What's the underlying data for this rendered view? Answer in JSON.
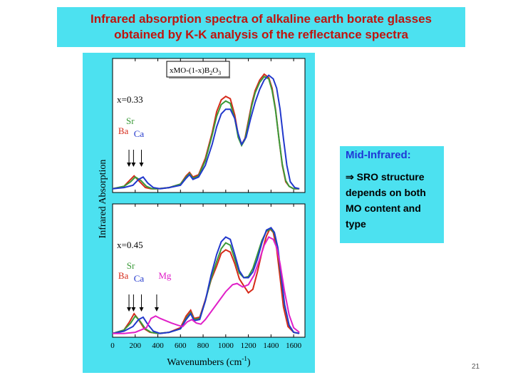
{
  "slide": {
    "title_line1": "Infrared absorption spectra of alkaline earth borate glasses",
    "title_line2": "obtained by K-K analysis of the reflectance spectra",
    "number": "21"
  },
  "info_box": {
    "title": "Mid-Infrared:",
    "lines": [
      "⇒ SRO structure",
      "depends on both",
      "MO content and",
      "type"
    ]
  },
  "colors": {
    "panel_bg": "#4ce1f0",
    "title_text": "#c0140e",
    "info_title": "#1f37d6",
    "Ba": "#d62a1a",
    "Sr": "#3a9a38",
    "Ca": "#2238cc",
    "Mg": "#e020c8"
  },
  "chart_data": {
    "type": "line",
    "ylabel": "Infrared Absorption",
    "xlabel": "Wavenumbers (cm-1)",
    "xlabel_main": "Wavenumbers (cm",
    "xlabel_sup": "-1",
    "xlabel_close": ")",
    "xlim": [
      0,
      1700
    ],
    "xticks": [
      0,
      200,
      400,
      600,
      800,
      1000,
      1200,
      1400,
      1600
    ],
    "xtick_labels": [
      "0",
      "200",
      "400",
      "600",
      "800",
      "1000",
      "1200",
      "1400",
      "1600"
    ],
    "ylim": [
      0,
      1
    ],
    "legend_box": {
      "text": "xMO-(1-x)B",
      "sub2": "2",
      "mid": "O",
      "sub3": "3"
    },
    "panels": [
      {
        "id": "top",
        "label": "x=0.33",
        "annotations": [
          {
            "text": "Sr",
            "series": "Sr",
            "x": 170
          },
          {
            "text": "Ba",
            "series": "Ba",
            "x": 150
          },
          {
            "text": "Ca",
            "series": "Ca",
            "x": 200
          }
        ],
        "arrow_positions": [
          145,
          185,
          255
        ],
        "series": [
          {
            "name": "Ba",
            "color": "#d62a1a",
            "x": [
              0,
              100,
              150,
              190,
              240,
              290,
              340,
              400,
              500,
              600,
              650,
              680,
              710,
              760,
              820,
              880,
              920,
              960,
              1000,
              1040,
              1080,
              1110,
              1140,
              1170,
              1200,
              1230,
              1260,
              1300,
              1340,
              1380,
              1410,
              1440,
              1470,
              1500,
              1530,
              1560,
              1600,
              1650
            ],
            "y": [
              0.02,
              0.04,
              0.09,
              0.13,
              0.08,
              0.03,
              0.02,
              0.02,
              0.03,
              0.06,
              0.13,
              0.16,
              0.12,
              0.14,
              0.28,
              0.5,
              0.68,
              0.78,
              0.81,
              0.79,
              0.65,
              0.48,
              0.4,
              0.45,
              0.6,
              0.75,
              0.86,
              0.95,
              1.0,
              0.97,
              0.88,
              0.7,
              0.45,
              0.22,
              0.08,
              0.04,
              0.02,
              0.02
            ]
          },
          {
            "name": "Sr",
            "color": "#3a9a38",
            "x": [
              0,
              100,
              160,
              200,
              250,
              300,
              350,
              400,
              500,
              600,
              650,
              680,
              710,
              760,
              820,
              880,
              920,
              960,
              1000,
              1040,
              1080,
              1110,
              1140,
              1170,
              1200,
              1230,
              1260,
              1300,
              1340,
              1380,
              1410,
              1440,
              1470,
              1500,
              1530,
              1560,
              1600,
              1650
            ],
            "y": [
              0.02,
              0.04,
              0.08,
              0.12,
              0.09,
              0.04,
              0.02,
              0.02,
              0.03,
              0.06,
              0.12,
              0.15,
              0.11,
              0.13,
              0.26,
              0.48,
              0.64,
              0.74,
              0.77,
              0.75,
              0.62,
              0.46,
              0.39,
              0.44,
              0.58,
              0.73,
              0.84,
              0.93,
              0.98,
              0.96,
              0.86,
              0.69,
              0.45,
              0.23,
              0.09,
              0.04,
              0.02,
              0.02
            ]
          },
          {
            "name": "Ca",
            "color": "#2238cc",
            "x": [
              0,
              100,
              180,
              230,
              270,
              310,
              360,
              420,
              500,
              600,
              650,
              680,
              710,
              760,
              820,
              880,
              920,
              960,
              1000,
              1040,
              1080,
              1110,
              1140,
              1180,
              1220,
              1260,
              1300,
              1340,
              1380,
              1420,
              1450,
              1480,
              1510,
              1540,
              1570,
              1610,
              1650
            ],
            "y": [
              0.02,
              0.03,
              0.05,
              0.1,
              0.12,
              0.07,
              0.03,
              0.02,
              0.03,
              0.05,
              0.11,
              0.14,
              0.1,
              0.12,
              0.22,
              0.4,
              0.55,
              0.66,
              0.7,
              0.7,
              0.62,
              0.49,
              0.4,
              0.46,
              0.62,
              0.76,
              0.87,
              0.95,
              0.99,
              0.96,
              0.88,
              0.7,
              0.45,
              0.22,
              0.08,
              0.03,
              0.02
            ]
          }
        ]
      },
      {
        "id": "bottom",
        "label": "x=0.45",
        "annotations": [
          {
            "text": "Sr",
            "series": "Sr",
            "x": 175
          },
          {
            "text": "Ba",
            "series": "Ba",
            "x": 150
          },
          {
            "text": "Ca",
            "series": "Ca",
            "x": 200
          },
          {
            "text": "Mg",
            "series": "Mg",
            "x": 380
          }
        ],
        "arrow_positions": [
          145,
          185,
          255,
          390
        ],
        "series": [
          {
            "name": "Ba",
            "color": "#d62a1a",
            "x": [
              0,
              100,
              150,
              190,
              230,
              280,
              330,
              400,
              500,
              600,
              650,
              690,
              720,
              770,
              820,
              870,
              920,
              960,
              1000,
              1040,
              1080,
              1120,
              1160,
              1200,
              1240,
              1280,
              1320,
              1360,
              1390,
              1420,
              1450,
              1480,
              1510,
              1550,
              1600,
              1650
            ],
            "y": [
              0.02,
              0.05,
              0.12,
              0.19,
              0.14,
              0.06,
              0.03,
              0.02,
              0.03,
              0.07,
              0.17,
              0.22,
              0.15,
              0.16,
              0.31,
              0.48,
              0.6,
              0.71,
              0.74,
              0.72,
              0.62,
              0.49,
              0.43,
              0.37,
              0.4,
              0.55,
              0.72,
              0.86,
              0.92,
              0.89,
              0.75,
              0.5,
              0.25,
              0.08,
              0.03,
              0.02
            ]
          },
          {
            "name": "Sr",
            "color": "#3a9a38",
            "x": [
              0,
              100,
              160,
              200,
              240,
              290,
              340,
              400,
              500,
              600,
              650,
              690,
              720,
              770,
              820,
              870,
              920,
              960,
              1000,
              1040,
              1080,
              1120,
              1160,
              1200,
              1240,
              1280,
              1320,
              1360,
              1400,
              1430,
              1460,
              1490,
              1520,
              1560,
              1600,
              1650
            ],
            "y": [
              0.02,
              0.05,
              0.11,
              0.17,
              0.13,
              0.06,
              0.03,
              0.02,
              0.03,
              0.06,
              0.15,
              0.2,
              0.14,
              0.15,
              0.3,
              0.49,
              0.64,
              0.75,
              0.8,
              0.78,
              0.66,
              0.54,
              0.5,
              0.51,
              0.58,
              0.7,
              0.82,
              0.9,
              0.92,
              0.88,
              0.74,
              0.5,
              0.26,
              0.09,
              0.03,
              0.02
            ]
          },
          {
            "name": "Ca",
            "color": "#2238cc",
            "x": [
              0,
              100,
              180,
              230,
              270,
              310,
              360,
              420,
              500,
              600,
              650,
              690,
              720,
              770,
              820,
              870,
              920,
              960,
              1000,
              1040,
              1080,
              1120,
              1160,
              1200,
              1240,
              1280,
              1320,
              1360,
              1400,
              1430,
              1460,
              1490,
              1520,
              1560,
              1600,
              1650
            ],
            "y": [
              0.02,
              0.04,
              0.08,
              0.14,
              0.16,
              0.1,
              0.04,
              0.02,
              0.03,
              0.06,
              0.14,
              0.19,
              0.13,
              0.14,
              0.3,
              0.52,
              0.7,
              0.81,
              0.85,
              0.83,
              0.7,
              0.56,
              0.5,
              0.5,
              0.55,
              0.66,
              0.8,
              0.91,
              0.93,
              0.89,
              0.76,
              0.52,
              0.27,
              0.09,
              0.03,
              0.02
            ]
          },
          {
            "name": "Mg",
            "color": "#e020c8",
            "x": [
              0,
              100,
              200,
              300,
              340,
              380,
              420,
              470,
              520,
              580,
              620,
              660,
              700,
              740,
              780,
              820,
              880,
              940,
              1000,
              1060,
              1100,
              1150,
              1200,
              1250,
              1300,
              1340,
              1380,
              1420,
              1450,
              1480,
              1520,
              1560,
              1600,
              1650
            ],
            "y": [
              0.02,
              0.02,
              0.03,
              0.07,
              0.15,
              0.17,
              0.15,
              0.13,
              0.11,
              0.09,
              0.08,
              0.12,
              0.14,
              0.11,
              0.1,
              0.14,
              0.22,
              0.3,
              0.38,
              0.44,
              0.45,
              0.42,
              0.44,
              0.52,
              0.66,
              0.78,
              0.85,
              0.83,
              0.76,
              0.62,
              0.38,
              0.18,
              0.07,
              0.03
            ]
          }
        ]
      }
    ]
  }
}
